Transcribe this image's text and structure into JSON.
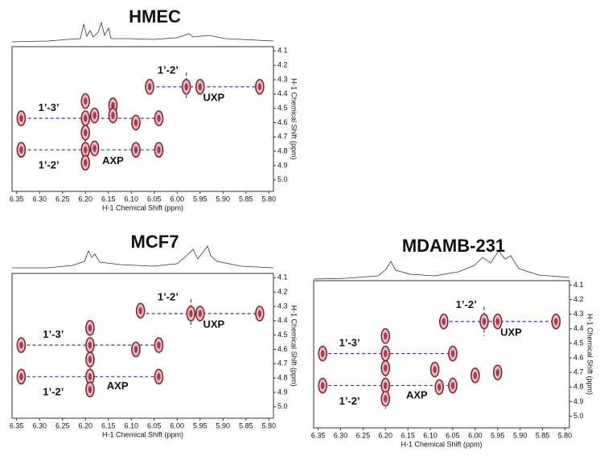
{
  "chart_data": [
    {
      "type": "contour",
      "title": "HMEC",
      "xlabel": "H-1 Chemical Shift (ppm)",
      "ylabel": "H-1 Chemical Shift (ppm)",
      "xlim": [
        6.36,
        5.79
      ],
      "ylim": [
        4.07,
        5.08
      ],
      "xticks": [
        6.35,
        {
          "value": 6.3,
          "label": "6.30"
        },
        6.25,
        {
          "value": 6.2,
          "label": "6.20"
        },
        6.15,
        {
          "value": 6.1,
          "label": "6.10"
        },
        6.05,
        {
          "value": 6.0,
          "label": "6.00"
        },
        5.95,
        {
          "value": 5.9,
          "label": "5.90"
        },
        5.85,
        {
          "value": 5.8,
          "label": "5.80"
        }
      ],
      "yticks": [
        4.1,
        4.2,
        4.3,
        4.4,
        4.5,
        4.6,
        4.7,
        4.8,
        4.9,
        {
          "value": 5.0,
          "label": "5.0"
        }
      ],
      "x": [
        6.2,
        6.2,
        6.18,
        6.18,
        6.14,
        6.14,
        6.34,
        6.34,
        6.04,
        6.04,
        6.09,
        6.09,
        6.2,
        5.98,
        6.06,
        5.95,
        5.82,
        6.2,
        6.2
      ],
      "values": [
        4.79,
        4.57,
        4.55,
        4.78,
        4.48,
        4.55,
        4.57,
        4.79,
        4.57,
        4.79,
        4.6,
        4.79,
        4.45,
        4.35,
        4.35,
        4.35,
        4.35,
        4.67,
        4.88
      ],
      "hguides": [
        {
          "y": 4.57,
          "x": [
            6.35,
            6.03
          ]
        },
        {
          "y": 4.79,
          "x": [
            6.35,
            6.03
          ]
        },
        {
          "y": 4.35,
          "x": [
            6.07,
            5.82
          ]
        }
      ],
      "vguides": [
        {
          "x": 6.2,
          "y": [
            4.4,
            4.95
          ]
        },
        {
          "x": 5.98,
          "y": [
            4.25,
            4.45
          ]
        }
      ],
      "annotations": [
        {
          "text": "1’-3’",
          "x": 6.28,
          "y": 4.5
        },
        {
          "text": "1’-2’",
          "x": 6.28,
          "y": 4.9
        },
        {
          "text": "AXP",
          "x": 6.14,
          "y": 4.87
        },
        {
          "text": "1’-2’",
          "x": 6.02,
          "y": 4.24
        },
        {
          "text": "UXP",
          "x": 5.92,
          "y": 4.43
        }
      ],
      "color": "#8b2232",
      "guide_color": "#3333cc"
    },
    {
      "type": "contour",
      "title": "MCF7",
      "xlabel": "H-1 Chemical Shift (ppm)",
      "ylabel": "H-1 Chemical Shift (ppm)",
      "xlim": [
        6.36,
        5.79
      ],
      "ylim": [
        4.07,
        5.08
      ],
      "xticks": [
        6.35,
        {
          "value": 6.3,
          "label": "6.30"
        },
        6.25,
        {
          "value": 6.2,
          "label": "6.20"
        },
        6.15,
        {
          "value": 6.1,
          "label": "6.10"
        },
        6.05,
        {
          "value": 6.0,
          "label": "6.00"
        },
        5.95,
        {
          "value": 5.9,
          "label": "5.90"
        },
        5.85,
        {
          "value": 5.8,
          "label": "5.80"
        }
      ],
      "yticks": [
        4.1,
        4.2,
        4.3,
        4.4,
        4.5,
        4.6,
        4.7,
        4.8,
        4.9,
        {
          "value": 5.0,
          "label": "5.0"
        }
      ],
      "x": [
        6.19,
        6.19,
        6.34,
        6.34,
        6.04,
        6.04,
        6.19,
        6.19,
        6.19,
        5.97,
        6.08,
        5.95,
        5.82,
        6.09
      ],
      "values": [
        4.79,
        4.57,
        4.57,
        4.79,
        4.57,
        4.79,
        4.45,
        4.67,
        4.88,
        4.35,
        4.33,
        4.35,
        4.35,
        4.6
      ],
      "hguides": [
        {
          "y": 4.57,
          "x": [
            6.34,
            6.04
          ]
        },
        {
          "y": 4.79,
          "x": [
            6.34,
            6.04
          ]
        },
        {
          "y": 4.35,
          "x": [
            6.08,
            5.82
          ]
        }
      ],
      "vguides": [
        {
          "x": 6.19,
          "y": [
            4.4,
            4.95
          ]
        },
        {
          "x": 5.97,
          "y": [
            4.25,
            4.45
          ]
        }
      ],
      "annotations": [
        {
          "text": "1’-3’",
          "x": 6.27,
          "y": 4.5
        },
        {
          "text": "1’-2’",
          "x": 6.27,
          "y": 4.9
        },
        {
          "text": "AXP",
          "x": 6.13,
          "y": 4.86
        },
        {
          "text": "1’-2’",
          "x": 6.02,
          "y": 4.24
        },
        {
          "text": "UXP",
          "x": 5.92,
          "y": 4.43
        }
      ],
      "color": "#8b2232",
      "guide_color": "#3333cc"
    },
    {
      "type": "contour",
      "title": "MDAMB-231",
      "xlabel": "H-1 Chemical Shift (ppm)",
      "ylabel": "H-1 Chemical Shift (ppm)",
      "xlim": [
        6.36,
        5.79
      ],
      "ylim": [
        4.07,
        5.08
      ],
      "xticks": [
        6.35,
        {
          "value": 6.3,
          "label": "6.30"
        },
        6.25,
        {
          "value": 6.2,
          "label": "6.20"
        },
        6.15,
        {
          "value": 6.1,
          "label": "6.10"
        },
        6.05,
        {
          "value": 6.0,
          "label": "6.00"
        },
        5.95,
        {
          "value": 5.9,
          "label": "5.90"
        },
        5.85,
        {
          "value": 5.8,
          "label": "5.80"
        }
      ],
      "yticks": [
        4.1,
        4.2,
        4.3,
        4.4,
        4.5,
        4.6,
        4.7,
        4.8,
        4.9,
        {
          "value": 5.0,
          "label": "5.0"
        }
      ],
      "x": [
        6.2,
        6.2,
        6.34,
        6.34,
        6.05,
        6.05,
        6.2,
        6.2,
        6.2,
        5.98,
        6.07,
        5.95,
        5.82,
        6.09,
        6.0,
        5.95,
        6.08
      ],
      "values": [
        4.79,
        4.57,
        4.57,
        4.79,
        4.57,
        4.79,
        4.45,
        4.67,
        4.88,
        4.35,
        4.35,
        4.35,
        4.35,
        4.68,
        4.72,
        4.7,
        4.8
      ],
      "hguides": [
        {
          "y": 4.57,
          "x": [
            6.34,
            6.05
          ]
        },
        {
          "y": 4.79,
          "x": [
            6.34,
            6.05
          ]
        },
        {
          "y": 4.35,
          "x": [
            6.07,
            5.82
          ]
        }
      ],
      "vguides": [
        {
          "x": 6.2,
          "y": [
            4.4,
            4.95
          ]
        },
        {
          "x": 5.98,
          "y": [
            4.25,
            4.45
          ]
        }
      ],
      "annotations": [
        {
          "text": "1’-3’",
          "x": 6.28,
          "y": 4.5
        },
        {
          "text": "1’-2’",
          "x": 6.28,
          "y": 4.9
        },
        {
          "text": "AXP",
          "x": 6.13,
          "y": 4.86
        },
        {
          "text": "1’-2’",
          "x": 6.02,
          "y": 4.24
        },
        {
          "text": "UXP",
          "x": 5.92,
          "y": 4.43
        }
      ],
      "color": "#8b2232",
      "guide_color": "#3333cc"
    }
  ]
}
